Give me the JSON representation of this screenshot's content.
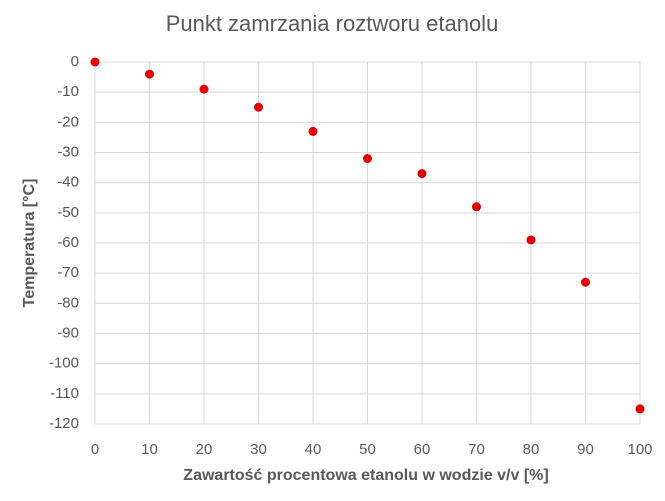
{
  "chart_data": {
    "type": "scatter",
    "title": "Punkt zamrzania roztworu etanolu",
    "x_label": "Zawartość procentowa etanolu w wodzie v/v [%]",
    "y_label": "Temperatura  [°C]",
    "x": [
      0,
      10,
      20,
      30,
      40,
      50,
      60,
      70,
      80,
      90,
      100
    ],
    "values": [
      0,
      -4,
      -9,
      -15,
      -23,
      -32,
      -37,
      -48,
      -59,
      -73,
      -115
    ],
    "color": "#e00000",
    "xlim": [
      0,
      100
    ],
    "xticks": [
      0,
      10,
      20,
      30,
      40,
      50,
      60,
      70,
      80,
      90,
      100
    ],
    "ylim": [
      -120,
      0
    ],
    "yticks": [
      0,
      -10,
      -20,
      -30,
      -40,
      -50,
      -60,
      -70,
      -80,
      -90,
      -100,
      -110,
      -120
    ],
    "grid": true
  }
}
